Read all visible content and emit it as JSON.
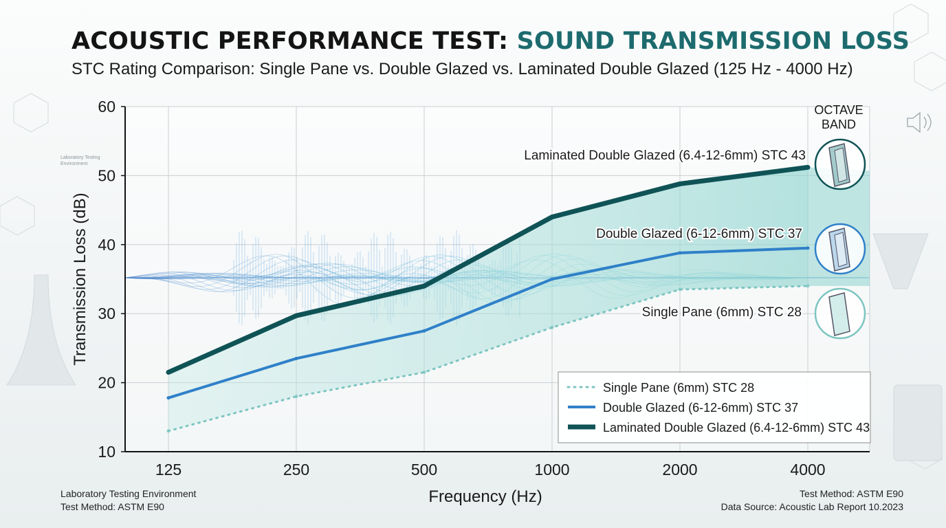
{
  "header": {
    "title_part1": "ACOUSTIC PERFORMANCE TEST: ",
    "title_part2": "SOUND TRANSMISSION LOSS",
    "subtitle": "STC Rating Comparison: Single Pane vs. Double Glazed vs. Laminated Double Glazed (125 Hz - 4000 Hz)"
  },
  "side_note": "Laboratory Testing Environment",
  "octave_label_line1": "OCTAVE",
  "octave_label_line2": "BAND",
  "footer": {
    "left_line1": "Laboratory Testing Environment",
    "left_line2": "Test Method: ASTM E90",
    "right_line1": "Test Method: ASTM E90",
    "right_line2": "Data Source: Acoustic Lab Report 10.2023"
  },
  "colors": {
    "single": "#7cc5c1",
    "double": "#2f80c8",
    "laminated": "#0f5356",
    "fill": "#8fd4cf",
    "title_accent": "#1d6b6e"
  },
  "icons": [
    "laminated-glass-icon",
    "double-glass-icon",
    "single-glass-icon",
    "speaker-icon"
  ],
  "chart_data": {
    "type": "line",
    "xlabel": "Frequency (Hz)",
    "ylabel": "Transmission Loss (dB)",
    "categories": [
      "125",
      "250",
      "500",
      "1000",
      "2000",
      "4000"
    ],
    "ylim": [
      10,
      60
    ],
    "yticks": [
      10,
      20,
      30,
      40,
      50,
      60
    ],
    "grid": true,
    "legend_position": "bottom-right",
    "series": [
      {
        "name": "Single Pane (6mm) STC 28",
        "key": "single",
        "style": "dotted",
        "values": [
          13,
          18,
          21.5,
          28,
          33.5,
          34
        ]
      },
      {
        "name": "Double Glazed (6-12-6mm) STC 37",
        "key": "double",
        "style": "solid",
        "values": [
          17.8,
          23.5,
          27.5,
          35,
          38.8,
          39.5
        ]
      },
      {
        "name": "Laminated Double Glazed (6.4-12-6mm) STC 43",
        "key": "laminated",
        "style": "solid-thick",
        "values": [
          21.5,
          29.7,
          34,
          44,
          48.8,
          51.2
        ]
      }
    ],
    "annotations": [
      "Laminated Double Glazed (6.4-12-6mm) STC 43",
      "Double Glazed (6-12-6mm) STC 37",
      "Single Pane (6mm) STC 28"
    ]
  }
}
